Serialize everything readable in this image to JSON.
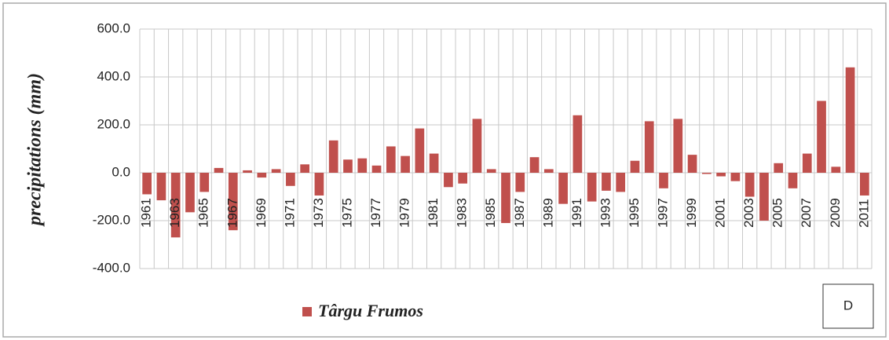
{
  "chart_data": {
    "type": "bar",
    "y_label": "precipitations (mm)",
    "annotation": "D",
    "categories": [
      "1961",
      null,
      "1963",
      null,
      "1965",
      null,
      "1967",
      null,
      "1969",
      null,
      "1971",
      null,
      "1973",
      null,
      "1975",
      null,
      "1977",
      null,
      "1979",
      null,
      "1981",
      null,
      "1983",
      null,
      "1985",
      null,
      "1987",
      null,
      "1989",
      null,
      "1991",
      null,
      "1993",
      null,
      "1995",
      null,
      "1997",
      null,
      "1999",
      null,
      "2001",
      null,
      "2003",
      null,
      "2005",
      null,
      "2007",
      null,
      "2009",
      null,
      "2011"
    ],
    "series": [
      {
        "name": "Târgu Frumos",
        "color": "#c0504d",
        "values": [
          -90,
          -115,
          -270,
          -165,
          -80,
          20,
          -240,
          10,
          -20,
          15,
          -55,
          35,
          -95,
          135,
          55,
          60,
          30,
          110,
          70,
          185,
          80,
          -60,
          -45,
          225,
          15,
          -210,
          -80,
          65,
          15,
          -130,
          240,
          -120,
          -75,
          -80,
          50,
          215,
          -65,
          225,
          75,
          -5,
          -15,
          -35,
          -100,
          -200,
          40,
          -65,
          80,
          300,
          25,
          440,
          -95
        ]
      }
    ],
    "ylim": [
      -400,
      600
    ],
    "yticks": [
      {
        "value": -400,
        "label": "-400.0"
      },
      {
        "value": -200,
        "label": "-200.0"
      },
      {
        "value": 0,
        "label": "0.0"
      },
      {
        "value": 200,
        "label": "200.0"
      },
      {
        "value": 400,
        "label": "400.0"
      },
      {
        "value": 600,
        "label": "600.0"
      }
    ],
    "grid": true,
    "legend": "bottom"
  }
}
